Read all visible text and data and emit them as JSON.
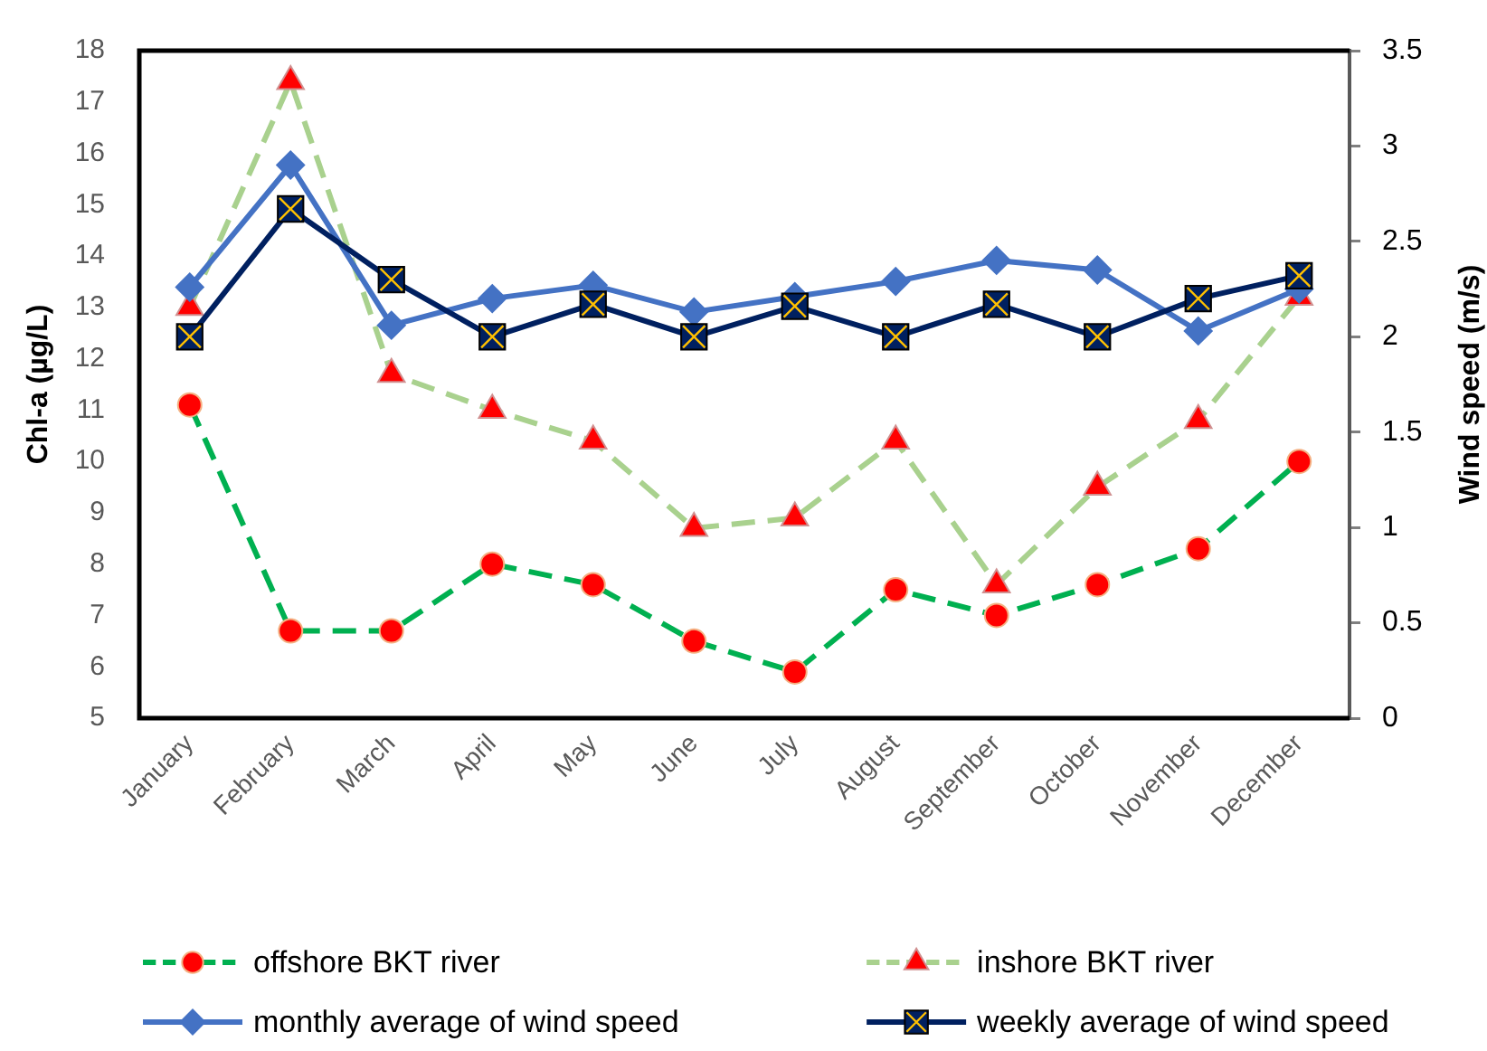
{
  "chart_data": {
    "type": "line",
    "ylabel": "Chl-a (µg/L)",
    "y2label": "Wind speed (m/s)",
    "categories": [
      "January",
      "February",
      "March",
      "April",
      "May",
      "June",
      "July",
      "August",
      "September",
      "October",
      "November",
      "December"
    ],
    "series": [
      {
        "name": "offshore BKT river",
        "color": "#00b050",
        "marker": "circle",
        "line_style": "dashed",
        "values": [
          11.1,
          6.7,
          6.7,
          8.0,
          7.6,
          6.5,
          5.9,
          7.5,
          7.0,
          7.6,
          8.3,
          10.0
        ]
      },
      {
        "name": "inshore BKT river",
        "color": "#a9d18e",
        "marker": "triangle",
        "line_style": "dashed",
        "values": [
          13.0,
          17.4,
          11.7,
          11.0,
          10.4,
          8.7,
          8.9,
          10.4,
          7.6,
          9.5,
          10.8,
          13.2
        ]
      },
      {
        "name": "monthly average of wind speed",
        "color": "#4472c4",
        "marker": "diamond",
        "axis": "y2",
        "values": [
          2.26,
          2.9,
          2.06,
          2.2,
          2.27,
          2.13,
          2.21,
          2.29,
          2.4,
          2.35,
          2.03,
          2.25
        ]
      },
      {
        "name": "weekly average of wind speed",
        "color": "#002060",
        "marker": "square",
        "axis": "y2",
        "values": [
          2.0,
          2.67,
          2.3,
          2.0,
          2.17,
          2.0,
          2.16,
          2.0,
          2.17,
          2.0,
          2.2,
          2.32
        ]
      }
    ],
    "ylim": [
      5,
      18
    ],
    "yticks": [
      5,
      6,
      7,
      8,
      9,
      10,
      11,
      12,
      13,
      14,
      15,
      16,
      17,
      18
    ],
    "y2lim": [
      0,
      3.5
    ],
    "y2ticks": [
      0,
      0.5,
      1,
      1.5,
      2,
      2.5,
      3,
      3.5
    ],
    "legend": "bottom"
  }
}
